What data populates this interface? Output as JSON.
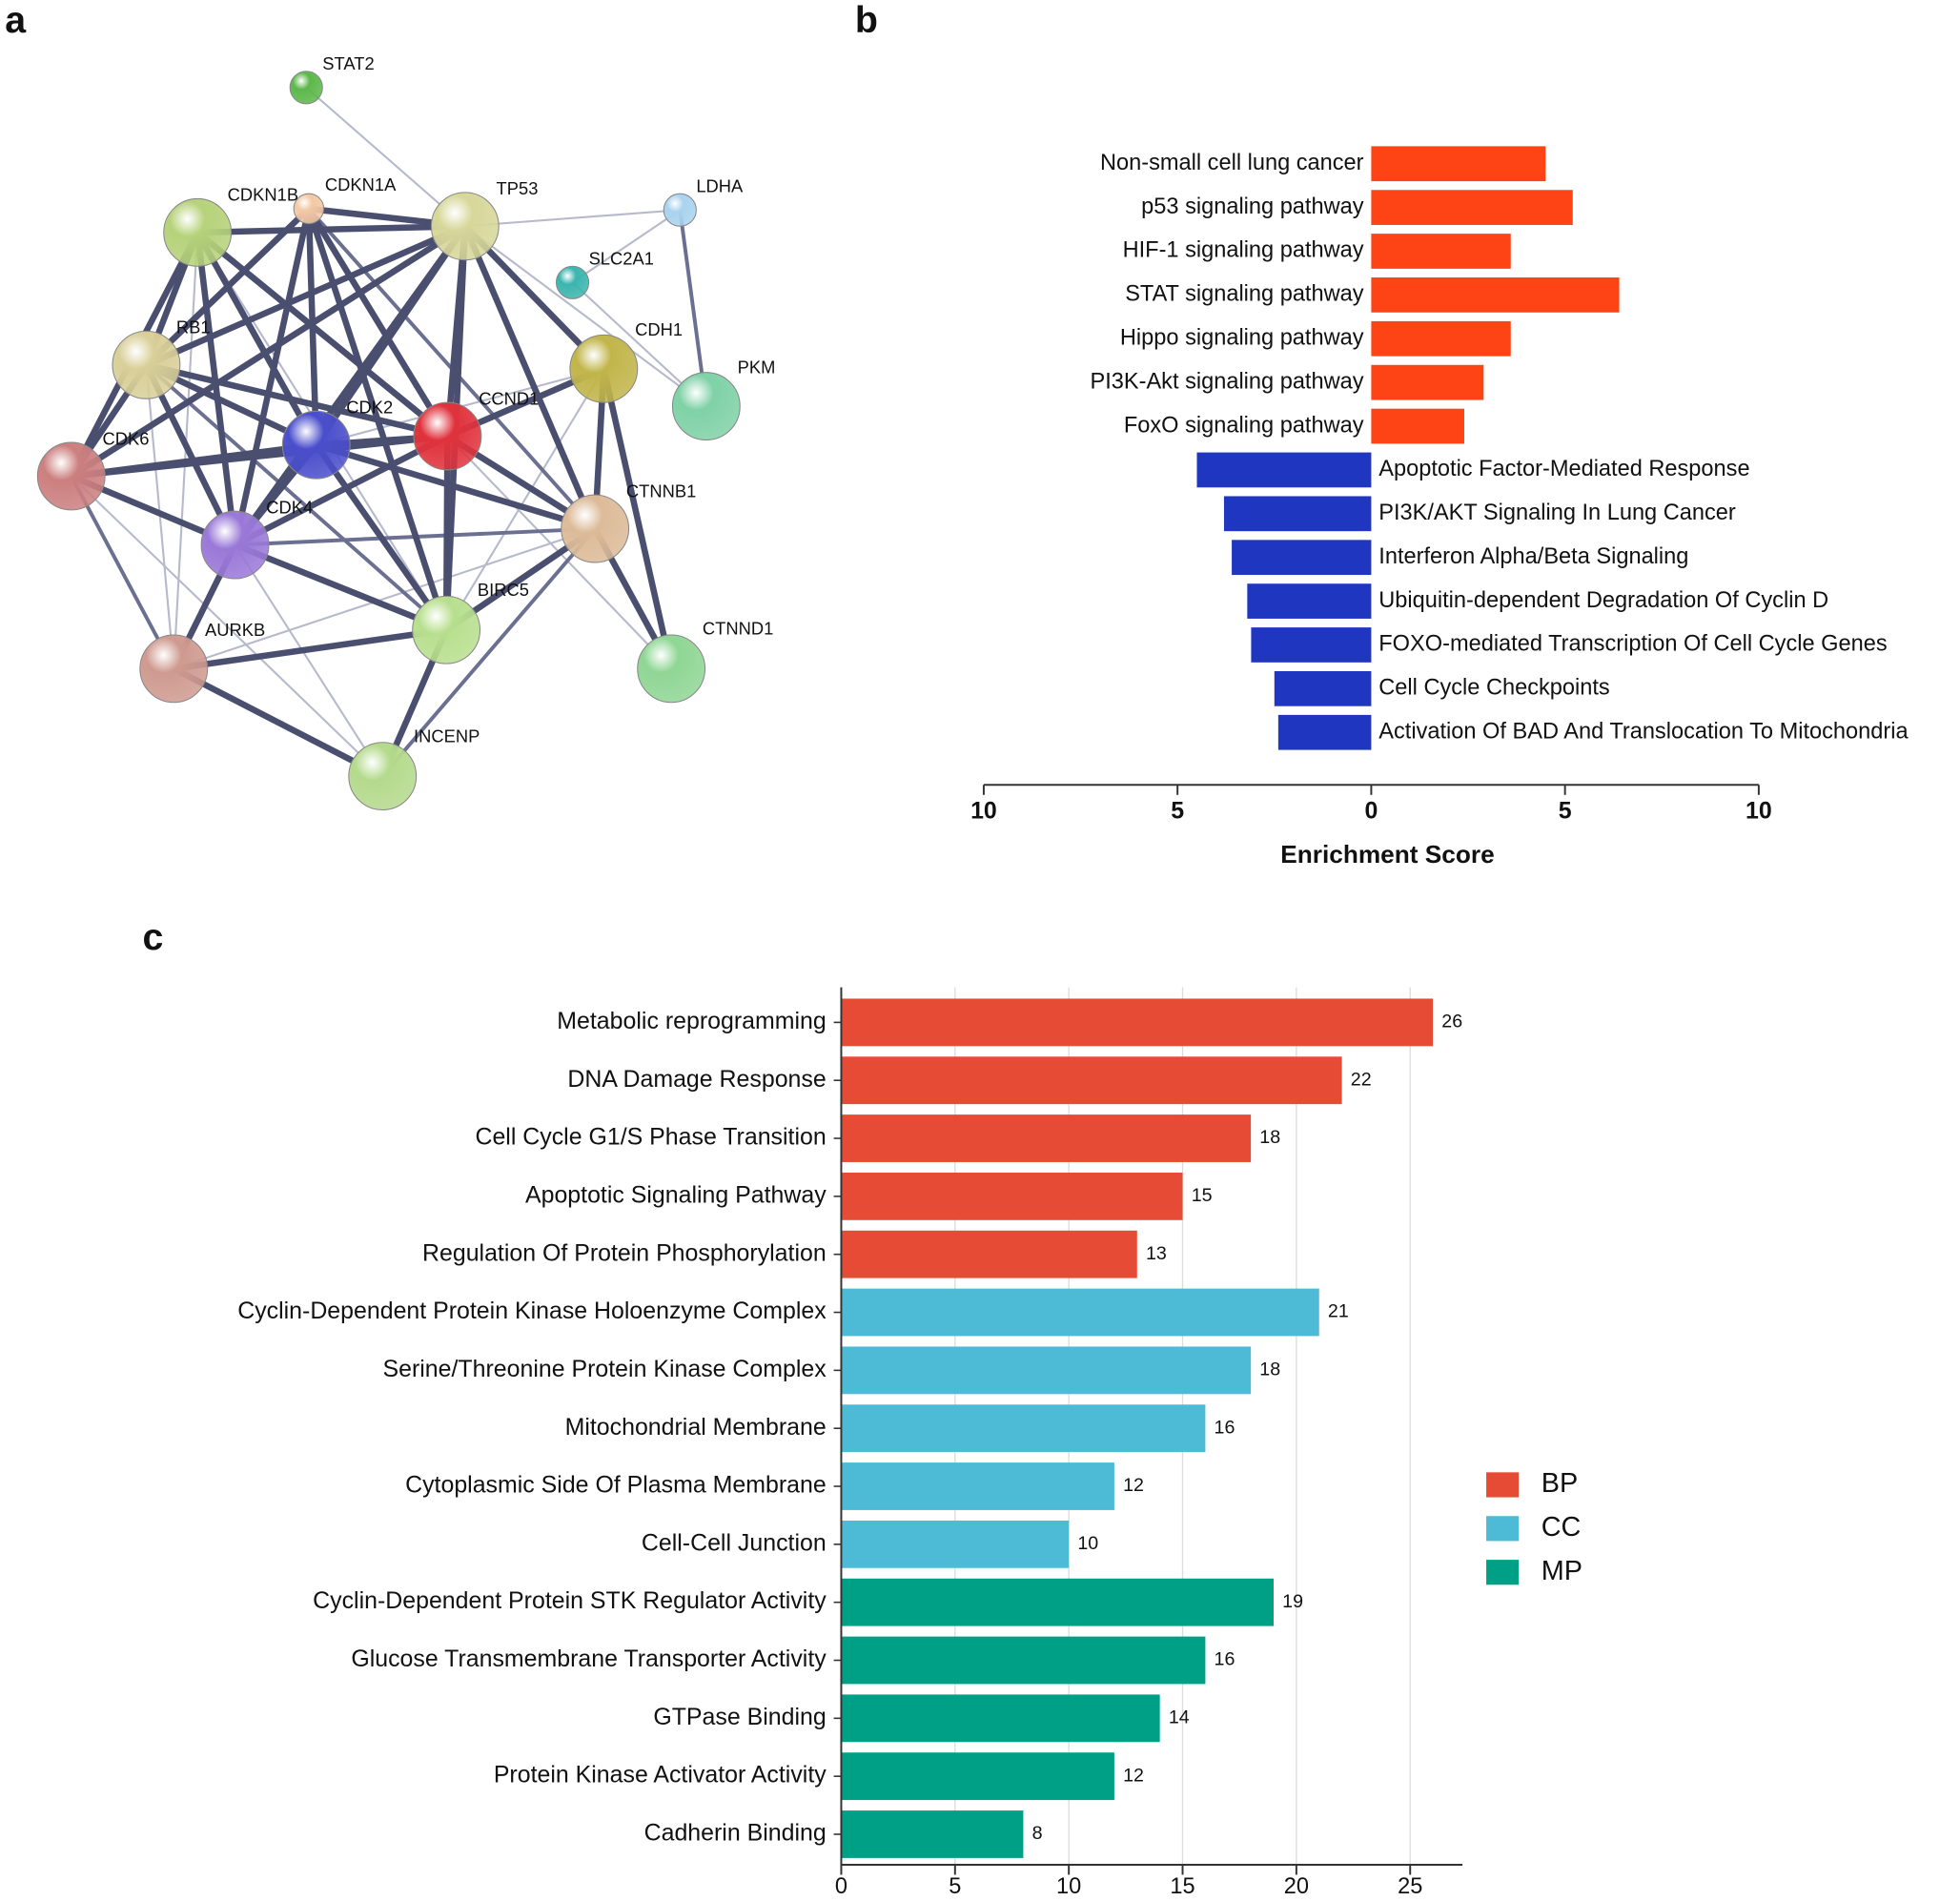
{
  "panel_labels": [
    "a",
    "b",
    "c"
  ],
  "network": {
    "nodes": [
      {
        "label": "STAT2"
      },
      {
        "label": "CDKN1A"
      },
      {
        "label": "CDKN1B"
      },
      {
        "label": "TP53"
      },
      {
        "label": "LDHA"
      },
      {
        "label": "SLC2A1"
      },
      {
        "label": "RB1"
      },
      {
        "label": "CDH1"
      },
      {
        "label": "PKM"
      },
      {
        "label": "CDK2"
      },
      {
        "label": "CCND1"
      },
      {
        "label": "CDK6"
      },
      {
        "label": "CTNNB1"
      },
      {
        "label": "CDK4"
      },
      {
        "label": "BIRC5"
      },
      {
        "label": "AURKB"
      },
      {
        "label": "CTNND1"
      },
      {
        "label": "INCENP"
      }
    ]
  },
  "chart_data": [
    {
      "type": "bar",
      "orientation": "horizontal",
      "categories": [
        "Non-small cell lung cancer",
        "p53 signaling pathway",
        "HIF-1 signaling pathway",
        "STAT signaling pathway",
        "Hippo signaling pathway",
        "PI3K-Akt signaling pathway",
        "FoxO signaling pathway",
        "Apoptotic Factor-Mediated Response",
        "PI3K/AKT Signaling In Lung Cancer",
        "Interferon Alpha/Beta Signaling",
        "Ubiquitin-dependent Degradation Of Cyclin D",
        "FOXO-mediated Transcription Of Cell Cycle Genes",
        "Cell Cycle Checkpoints",
        "Activation Of BAD And Translocation To Mitochondria"
      ],
      "values": [
        4.5,
        5.2,
        3.6,
        6.4,
        3.6,
        2.9,
        2.4,
        -4.5,
        -3.8,
        -3.6,
        -3.2,
        -3.1,
        -2.5,
        -2.4
      ],
      "colors": [
        "#fe4315",
        "#fe4315",
        "#fe4315",
        "#fe4315",
        "#fe4315",
        "#fe4315",
        "#fe4315",
        "#1f36c0",
        "#1f36c0",
        "#1f36c0",
        "#1f36c0",
        "#1f36c0",
        "#1f36c0",
        "#1f36c0"
      ],
      "xlim": [
        -10,
        10
      ],
      "xticks": [
        {
          "value": -10,
          "label": "10"
        },
        {
          "value": -5,
          "label": "5"
        },
        0,
        5,
        10
      ],
      "xlabel": "Enrichment Score"
    },
    {
      "type": "bar",
      "orientation": "horizontal",
      "categories": [
        "Metabolic reprogramming",
        "DNA Damage Response",
        "Cell Cycle G1/S Phase Transition",
        "Apoptotic Signaling Pathway",
        "Regulation Of Protein Phosphorylation",
        "Cyclin-Dependent Protein Kinase Holoenzyme Complex",
        "Serine/Threonine Protein Kinase Complex",
        "Mitochondrial Membrane",
        "Cytoplasmic Side Of Plasma Membrane",
        "Cell-Cell Junction",
        "Cyclin-Dependent Protein STK Regulator Activity",
        "Glucose Transmembrane Transporter Activity",
        "GTPase Binding",
        "Protein Kinase Activator Activity",
        "Cadherin Binding"
      ],
      "series": [
        {
          "name": "BP",
          "color": "#e64b35",
          "values": [
            26,
            22,
            18,
            15,
            13,
            null,
            null,
            null,
            null,
            null,
            null,
            null,
            null,
            null,
            null
          ]
        },
        {
          "name": "CC",
          "color": "#4dbbd5",
          "values": [
            null,
            null,
            null,
            null,
            null,
            21,
            18,
            16,
            12,
            10,
            null,
            null,
            null,
            null,
            null
          ]
        },
        {
          "name": "MP",
          "color": "#00a087",
          "values": [
            null,
            null,
            null,
            null,
            null,
            null,
            null,
            null,
            null,
            null,
            19,
            16,
            14,
            12,
            8
          ]
        }
      ],
      "xlim": [
        0,
        27.3
      ],
      "xticks": [
        0,
        5,
        10,
        15,
        20,
        25
      ],
      "grid": true,
      "legend": "right"
    }
  ]
}
